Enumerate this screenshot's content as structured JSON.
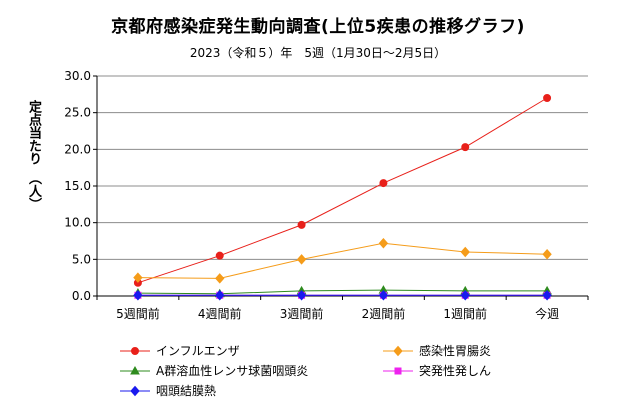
{
  "chart_data": {
    "type": "line",
    "title": "京都府感染症発生動向調査(上位5疾患の推移グラフ)",
    "subtitle": "2023（令和５）年　5週（1月30日～2月5日）",
    "ylabel": "定点当たり　（人）",
    "xlabel": "",
    "categories": [
      "5週間前",
      "4週間前",
      "3週間前",
      "2週間前",
      "1週間前",
      "今週"
    ],
    "ylim": [
      0,
      30
    ],
    "yticks": [
      "0.0",
      "5.0",
      "10.0",
      "15.0",
      "20.0",
      "25.0",
      "30.0"
    ],
    "grid": true,
    "legend_position": "bottom",
    "series": [
      {
        "name": "インフルエンザ",
        "values": [
          1.8,
          5.5,
          9.7,
          15.4,
          20.3,
          27.0
        ],
        "color": "#e8201a",
        "marker": "circle"
      },
      {
        "name": "感染性胃腸炎",
        "values": [
          2.5,
          2.4,
          5.0,
          7.2,
          6.0,
          5.7
        ],
        "color": "#f59c1a",
        "marker": "diamond"
      },
      {
        "name": "A群溶血性レンサ球菌咽頭炎",
        "values": [
          0.4,
          0.3,
          0.7,
          0.8,
          0.7,
          0.7
        ],
        "color": "#2e8b1e",
        "marker": "triangle"
      },
      {
        "name": "突発性発しん",
        "values": [
          0.1,
          0.1,
          0.1,
          0.1,
          0.1,
          0.1
        ],
        "color": "#ee22ee",
        "marker": "square"
      },
      {
        "name": "咽頭結膜熱",
        "values": [
          0.1,
          0.1,
          0.1,
          0.1,
          0.1,
          0.1
        ],
        "color": "#1a1aee",
        "marker": "diamond"
      }
    ]
  }
}
